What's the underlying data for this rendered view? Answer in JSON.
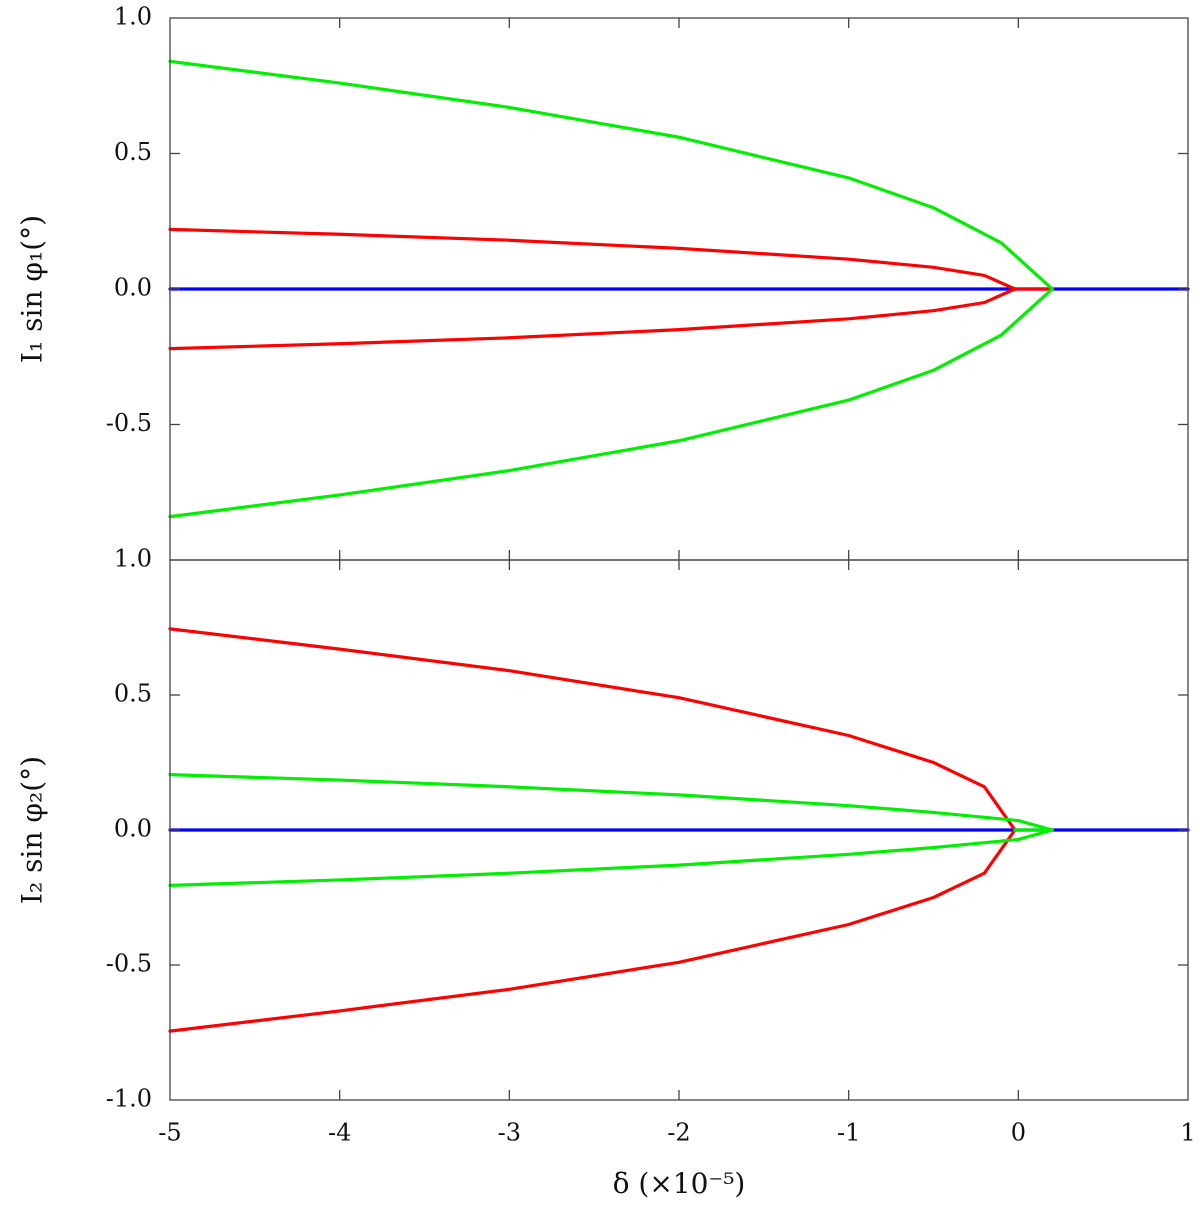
{
  "chart_data": [
    {
      "type": "line",
      "title": "",
      "xlabel": "δ (×10⁻⁵)",
      "ylabel": "I₁ sin φ₁(°)",
      "xlim": [
        -5,
        1
      ],
      "ylim": [
        -1,
        1
      ],
      "x_ticks": [],
      "y_ticks": [
        "1.0",
        "0.5",
        "0.0",
        "-0.5",
        "1.0"
      ],
      "grid": false,
      "series": [
        {
          "color": "#0000ff",
          "points": [
            [
              -5,
              0
            ],
            [
              1,
              0
            ]
          ]
        },
        {
          "color": "#ff0000",
          "points": [
            [
              -5,
              0.22
            ],
            [
              -4,
              0.202
            ],
            [
              -3,
              0.18
            ],
            [
              -2,
              0.15
            ],
            [
              -1,
              0.11
            ],
            [
              -0.5,
              0.08
            ],
            [
              -0.2,
              0.05
            ],
            [
              -0.02,
              0
            ],
            [
              -0.2,
              -0.05
            ],
            [
              -0.5,
              -0.08
            ],
            [
              -1,
              -0.11
            ],
            [
              -2,
              -0.15
            ],
            [
              -3,
              -0.18
            ],
            [
              -4,
              -0.202
            ],
            [
              -5,
              -0.22
            ]
          ]
        },
        {
          "color": "#ff0000",
          "points": [
            [
              -0.02,
              0
            ],
            [
              0.2,
              0
            ]
          ]
        },
        {
          "color": "#00ee00",
          "points": [
            [
              -5,
              0.84
            ],
            [
              -4,
              0.76
            ],
            [
              -3,
              0.67
            ],
            [
              -2,
              0.56
            ],
            [
              -1,
              0.41
            ],
            [
              -0.5,
              0.3
            ],
            [
              -0.1,
              0.17
            ],
            [
              0.2,
              0
            ],
            [
              -0.1,
              -0.17
            ],
            [
              -0.5,
              -0.3
            ],
            [
              -1,
              -0.41
            ],
            [
              -2,
              -0.56
            ],
            [
              -3,
              -0.67
            ],
            [
              -4,
              -0.76
            ],
            [
              -5,
              -0.84
            ]
          ]
        }
      ]
    },
    {
      "type": "line",
      "title": "",
      "xlabel": "δ (×10⁻⁵)",
      "ylabel": "I₂ sin φ₂(°)",
      "xlim": [
        -5,
        1
      ],
      "ylim": [
        -1,
        1
      ],
      "x_ticks": [
        "-5",
        "-4",
        "-3",
        "-2",
        "-1",
        "0",
        "1"
      ],
      "y_ticks": [
        "0.5",
        "0.0",
        "-0.5",
        "-1.0"
      ],
      "grid": false,
      "series": [
        {
          "color": "#0000ff",
          "points": [
            [
              -5,
              0
            ],
            [
              1,
              0
            ]
          ]
        },
        {
          "color": "#ff0000",
          "points": [
            [
              -5,
              0.745
            ],
            [
              -4,
              0.67
            ],
            [
              -3,
              0.59
            ],
            [
              -2,
              0.49
            ],
            [
              -1,
              0.35
            ],
            [
              -0.5,
              0.25
            ],
            [
              -0.2,
              0.16
            ],
            [
              -0.02,
              0
            ],
            [
              -0.2,
              -0.16
            ],
            [
              -0.5,
              -0.25
            ],
            [
              -1,
              -0.35
            ],
            [
              -2,
              -0.49
            ],
            [
              -3,
              -0.59
            ],
            [
              -4,
              -0.67
            ],
            [
              -5,
              -0.745
            ]
          ]
        },
        {
          "color": "#00ee00",
          "points": [
            [
              -5,
              0.205
            ],
            [
              -4,
              0.185
            ],
            [
              -3,
              0.16
            ],
            [
              -2,
              0.13
            ],
            [
              -1,
              0.09
            ],
            [
              -0.5,
              0.065
            ],
            [
              0,
              0.035
            ],
            [
              0.2,
              0
            ],
            [
              0,
              -0.035
            ],
            [
              -0.5,
              -0.065
            ],
            [
              -1,
              -0.09
            ],
            [
              -2,
              -0.13
            ],
            [
              -3,
              -0.16
            ],
            [
              -4,
              -0.185
            ],
            [
              -5,
              -0.205
            ]
          ]
        },
        {
          "color": "#00ee00",
          "points": [
            [
              -0.02,
              0
            ],
            [
              0.2,
              0
            ]
          ]
        }
      ]
    }
  ]
}
